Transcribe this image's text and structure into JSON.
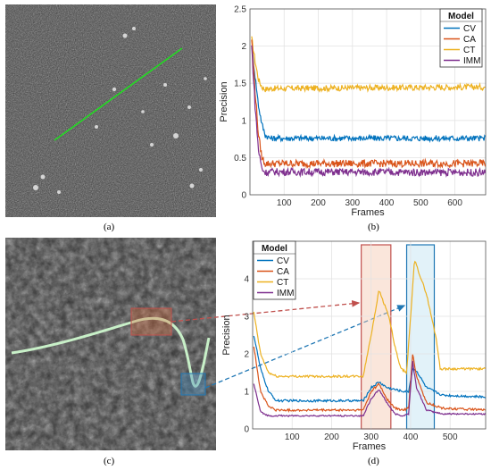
{
  "captions": {
    "a": "(a)",
    "b": "(b)",
    "c": "(c)",
    "d": "(d)"
  },
  "legend_b": {
    "title": "Model",
    "items": [
      "CV",
      "CA",
      "CT",
      "IMM"
    ]
  },
  "legend_d": {
    "title": "Model",
    "items": [
      "CV",
      "CA",
      "CT",
      "IMM"
    ]
  },
  "colors": {
    "CV": "#0072BD",
    "CA": "#D95319",
    "CT": "#EDB120",
    "IMM": "#7E2F8E",
    "track_a": "#22dd22",
    "track_c": "#c8f0c8",
    "box_orange": "#c0504d",
    "box_blue": "#1f77b4"
  },
  "chart_data": [
    {
      "type": "line",
      "panel": "b",
      "xlabel": "Frames",
      "ylabel": "Precision",
      "xlim": [
        0,
        690
      ],
      "ylim": [
        0,
        2.5
      ],
      "xticks": [
        100,
        200,
        300,
        400,
        500,
        600
      ],
      "yticks": [
        0,
        0.5,
        1,
        1.5,
        2,
        2.5
      ],
      "grid": true,
      "legend": "top-right",
      "series": [
        {
          "name": "CV",
          "x": [
            5,
            15,
            25,
            35,
            45,
            60,
            690
          ],
          "y": [
            2.0,
            1.6,
            1.2,
            0.95,
            0.8,
            0.76,
            0.76
          ],
          "noise": 0.04
        },
        {
          "name": "CA",
          "x": [
            5,
            15,
            25,
            35,
            45,
            60,
            690
          ],
          "y": [
            2.1,
            1.4,
            0.8,
            0.5,
            0.42,
            0.42,
            0.42
          ],
          "noise": 0.05
        },
        {
          "name": "CT",
          "x": [
            5,
            15,
            25,
            35,
            45,
            60,
            690
          ],
          "y": [
            2.1,
            1.8,
            1.55,
            1.45,
            1.42,
            1.43,
            1.45
          ],
          "noise": 0.04
        },
        {
          "name": "IMM",
          "x": [
            5,
            15,
            25,
            35,
            45,
            60,
            690
          ],
          "y": [
            2.0,
            1.2,
            0.6,
            0.35,
            0.3,
            0.31,
            0.3
          ],
          "noise": 0.05
        }
      ]
    },
    {
      "type": "line",
      "panel": "d",
      "xlabel": "Frames",
      "ylabel": "Precision",
      "xlim": [
        0,
        590
      ],
      "ylim": [
        0,
        5
      ],
      "xticks": [
        100,
        200,
        300,
        400,
        500
      ],
      "yticks": [
        0,
        1,
        2,
        3,
        4
      ],
      "grid": true,
      "legend": "top-left",
      "series": [
        {
          "name": "CV",
          "x": [
            3,
            20,
            40,
            60,
            280,
            300,
            320,
            340,
            360,
            380,
            395,
            405,
            415,
            440,
            480,
            590
          ],
          "y": [
            2.5,
            1.6,
            1.0,
            0.75,
            0.75,
            1.1,
            1.25,
            1.1,
            1.05,
            1.0,
            1.0,
            1.6,
            1.55,
            1.1,
            0.9,
            0.85
          ],
          "noise": 0.03
        },
        {
          "name": "CA",
          "x": [
            3,
            20,
            40,
            60,
            280,
            300,
            320,
            340,
            360,
            380,
            395,
            405,
            415,
            440,
            480,
            590
          ],
          "y": [
            2.2,
            1.0,
            0.6,
            0.5,
            0.5,
            1.0,
            1.2,
            0.8,
            0.55,
            0.5,
            0.55,
            2.0,
            1.4,
            0.7,
            0.55,
            0.5
          ],
          "noise": 0.03
        },
        {
          "name": "CT",
          "x": [
            3,
            20,
            40,
            60,
            280,
            300,
            320,
            345,
            360,
            375,
            390,
            410,
            440,
            465,
            475,
            590
          ],
          "y": [
            3.1,
            2.0,
            1.5,
            1.4,
            1.4,
            2.5,
            3.7,
            3.0,
            2.2,
            1.6,
            1.5,
            4.5,
            3.6,
            2.4,
            1.6,
            1.6
          ],
          "noise": 0.03
        },
        {
          "name": "IMM",
          "x": [
            3,
            20,
            40,
            60,
            280,
            300,
            320,
            340,
            360,
            380,
            395,
            405,
            415,
            440,
            480,
            590
          ],
          "y": [
            1.2,
            0.45,
            0.35,
            0.35,
            0.35,
            0.8,
            1.05,
            0.7,
            0.4,
            0.35,
            0.4,
            1.8,
            1.1,
            0.5,
            0.4,
            0.4
          ],
          "noise": 0.02
        }
      ],
      "highlights": [
        {
          "x0": 275,
          "x1": 350,
          "color": "orange"
        },
        {
          "x0": 390,
          "x1": 460,
          "color": "blue"
        }
      ]
    }
  ]
}
